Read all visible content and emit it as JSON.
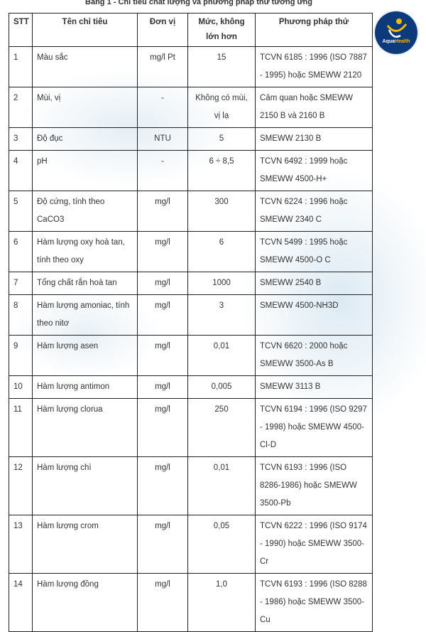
{
  "title": "Bảng 1 - Chỉ tiêu chất lượng và phương pháp thử tương ứng",
  "logo": {
    "text_a": "Aqua",
    "text_b": "Health"
  },
  "headers": [
    "STT",
    "Tên chỉ tiêu",
    "Đơn vị",
    "Mức, không lớn hơn",
    "Phương pháp thử"
  ],
  "rows": [
    [
      "1",
      "Màu sắc",
      "mg/l Pt",
      "15",
      "TCVN 6185 : 1996 (ISO 7887 - 1995) hoặc SMEWW 2120"
    ],
    [
      "2",
      "Mùi, vị",
      "-",
      "Không có mùi, vị lạ",
      "Cảm quan hoặc SMEWW 2150 B và 2160 B"
    ],
    [
      "3",
      "Độ đục",
      "NTU",
      "5",
      "SMEWW 2130 B"
    ],
    [
      "4",
      "pH",
      "-",
      "6 ÷ 8,5",
      "TCVN 6492 : 1999 hoặc SMEWW 4500-H+"
    ],
    [
      "5",
      "Độ cứng, tính theo CaCO3",
      "mg/l",
      "300",
      "TCVN 6224 : 1996 hoặc SMEWW 2340 C"
    ],
    [
      "6",
      "Hàm lượng oxy hoà tan, tính theo oxy",
      "mg/l",
      "6",
      "TCVN 5499 : 1995 hoặc SMEWW 4500-O C"
    ],
    [
      "7",
      "Tổng chất rắn hoà tan",
      "mg/l",
      "1000",
      "SMEWW 2540 B"
    ],
    [
      "8",
      "Hàm lượng amoniac, tính theo nitơ",
      "mg/l",
      "3",
      "SMEWW 4500-NH3D"
    ],
    [
      "9",
      "Hàm lượng asen",
      "mg/l",
      "0,01",
      "TCVN 6620 : 2000 hoặc SMEWW 3500-As B"
    ],
    [
      "10",
      "Hàm lượng antimon",
      "mg/l",
      "0,005",
      "SMEWW 3113 B"
    ],
    [
      "11",
      "Hàm lượng clorua",
      "mg/l",
      "250",
      "TCVN 6194 : 1996 (ISO 9297 - 1998) hoặc SMEWW 4500-Cl-D"
    ],
    [
      "12",
      "Hàm lượng chì",
      "mg/l",
      "0,01",
      "TCVN 6193 : 1996 (ISO 8286-1986) hoặc SMEWW 3500-Pb"
    ],
    [
      "13",
      "Hàm lượng crom",
      "mg/l",
      "0,05",
      "TCVN 6222 : 1996 (ISO 9174 - 1990) hoặc SMEWW 3500-Cr"
    ],
    [
      "14",
      "Hàm lượng đồng",
      "mg/l",
      "1,0",
      "TCVN 6193 : 1996 (ISO 8288 - 1986) hoặc SMEWW 3500-Cu"
    ]
  ]
}
